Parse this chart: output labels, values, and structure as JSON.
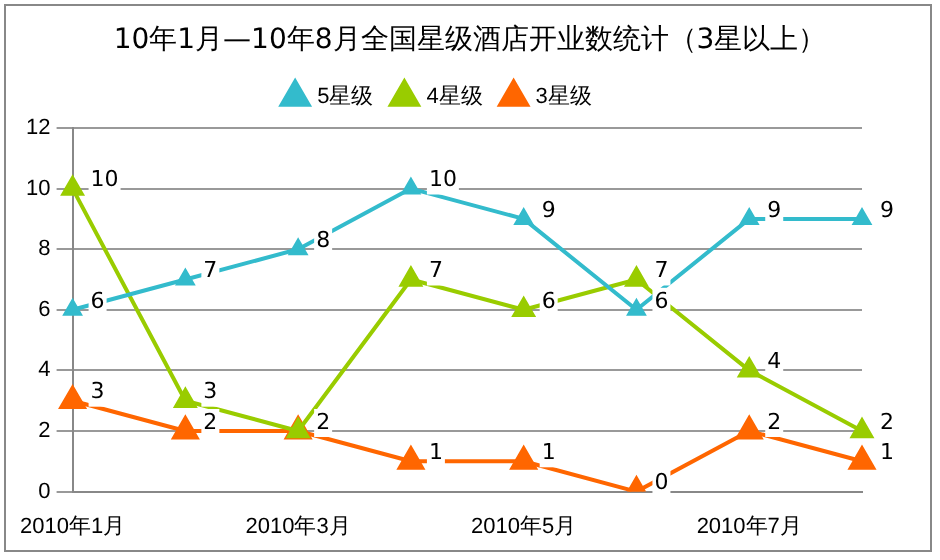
{
  "chart_data": {
    "type": "line",
    "title": "10年1月—10年8月全国星级酒店开业数统计（3星以上）",
    "categories": [
      "2010年1月",
      null,
      "2010年3月",
      null,
      "2010年5月",
      null,
      "2010年7月",
      null
    ],
    "series": [
      {
        "name": "5星级",
        "color": "#33bbcc",
        "values": [
          6,
          7,
          8,
          10,
          9,
          6,
          9,
          9
        ],
        "value_labels": [
          "6",
          "7",
          "8",
          "10",
          "9",
          "6",
          "9",
          "9"
        ]
      },
      {
        "name": "4星级",
        "color": "#99cc00",
        "values": [
          10,
          3,
          2,
          7,
          6,
          7,
          4,
          2
        ],
        "value_labels": [
          "10",
          "3",
          "2",
          "7",
          "6",
          "7",
          "4",
          "2"
        ]
      },
      {
        "name": "3星级",
        "color": "#ff6600",
        "values": [
          3,
          2,
          2,
          1,
          1,
          0,
          2,
          1
        ],
        "value_labels": [
          "3",
          "2",
          null,
          "1",
          "1",
          "0",
          "2",
          "1"
        ]
      }
    ],
    "ylim": [
      0,
      12
    ],
    "yticks": [
      0,
      2,
      4,
      6,
      8,
      10,
      12
    ],
    "grid": "y",
    "legend": "top",
    "marker": "triangle",
    "line_style": "solid"
  }
}
